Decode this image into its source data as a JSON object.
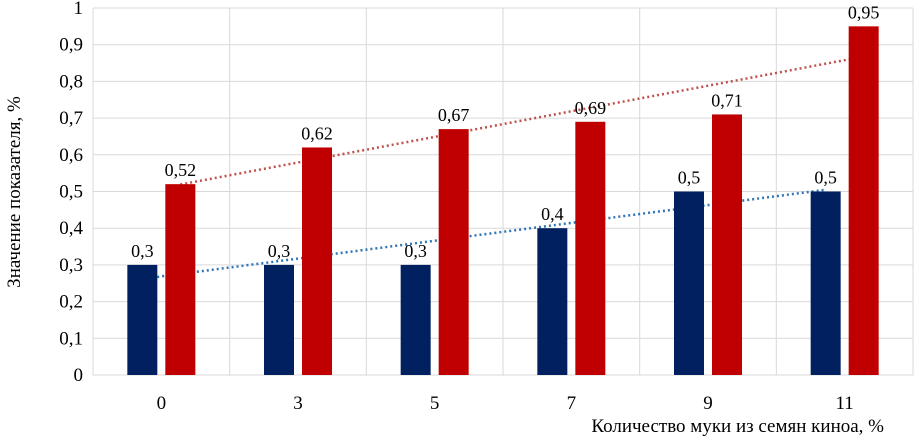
{
  "chart_data": {
    "type": "bar",
    "categories": [
      "0",
      "3",
      "5",
      "7",
      "9",
      "11"
    ],
    "series": [
      {
        "values": [
          0.3,
          0.3,
          0.3,
          0.4,
          0.5,
          0.5
        ],
        "color": "#002060"
      },
      {
        "values": [
          0.52,
          0.62,
          0.67,
          0.69,
          0.71,
          0.95
        ],
        "color": "#C00000"
      }
    ],
    "data_labels": [
      [
        "0,3",
        "0,3",
        "0,3",
        "0,4",
        "0,5",
        "0,5"
      ],
      [
        "0,52",
        "0,62",
        "0,67",
        "0,69",
        "0,71",
        "0,95"
      ]
    ],
    "trendlines": [
      {
        "type": "linear",
        "series_index": 0,
        "color": "#2E75B6",
        "style": "dotted"
      },
      {
        "type": "linear",
        "series_index": 1,
        "color": "#C0504D",
        "style": "dotted"
      }
    ],
    "title": "",
    "xlabel": "Количество муки из семян киноа, %",
    "ylabel": "Значение показателя, %",
    "ylim": [
      0,
      1
    ],
    "yticks": [
      "0",
      "0,1",
      "0,2",
      "0,3",
      "0,4",
      "0,5",
      "0,6",
      "0,7",
      "0,8",
      "0,9",
      "1"
    ],
    "grid": true,
    "legend": "none"
  }
}
